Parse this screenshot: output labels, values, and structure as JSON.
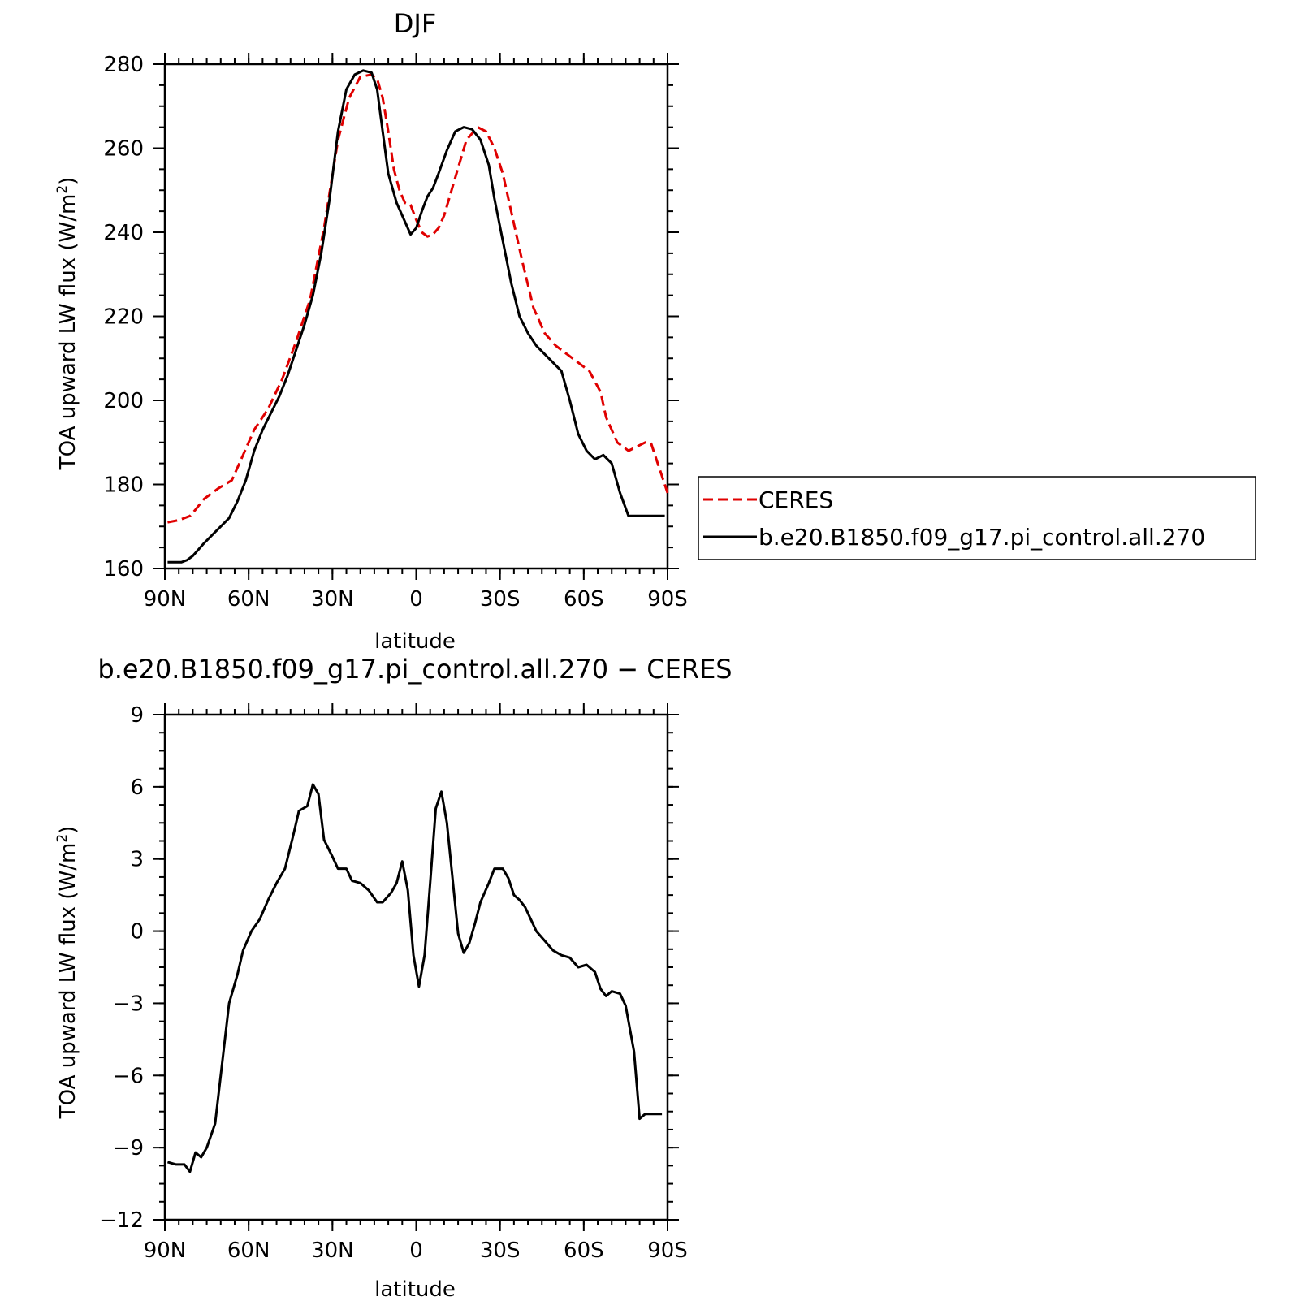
{
  "chart_data": [
    {
      "type": "line",
      "title": "DJF",
      "xlabel": "latitude",
      "ylabel_main": "TOA upward LW flux (W/m",
      "ylabel_sup": "2",
      "ylabel_close": ")",
      "xlim": [
        90,
        -90
      ],
      "ylim": [
        160,
        280
      ],
      "xticks": [
        90,
        60,
        30,
        0,
        -30,
        -60,
        -90
      ],
      "xtick_labels": [
        "90N",
        "60N",
        "30N",
        "0",
        "30S",
        "60S",
        "90S"
      ],
      "yticks": [
        160,
        180,
        200,
        220,
        240,
        260,
        280
      ],
      "ytick_labels": [
        "160",
        "180",
        "200",
        "220",
        "240",
        "260",
        "280"
      ],
      "grid": false,
      "legend": "right",
      "series": [
        {
          "name": "CERES",
          "color": "#e00000",
          "style": "dashed",
          "x": [
            89,
            85,
            81,
            79,
            76,
            71,
            66,
            62,
            58,
            53,
            48,
            43,
            38,
            33,
            28,
            24,
            20,
            16,
            14,
            12,
            10,
            8,
            6,
            4,
            2,
            0,
            -2,
            -4,
            -6,
            -8,
            -10,
            -14,
            -18,
            -22,
            -25,
            -28,
            -31,
            -34,
            -38,
            -42,
            -46,
            -50,
            -54,
            -58,
            -62,
            -66,
            -68,
            -72,
            -76,
            -79,
            -82,
            -84,
            -86,
            -88,
            -90
          ],
          "values": [
            171,
            171.5,
            172.5,
            174,
            176.5,
            179,
            181,
            187,
            193,
            198,
            205,
            214,
            224,
            241,
            262,
            272,
            277,
            277.5,
            276.5,
            272,
            264,
            255,
            250,
            247,
            246.5,
            243,
            240,
            239,
            239.5,
            241,
            244,
            253,
            262,
            265,
            264,
            260,
            254,
            245,
            233,
            222,
            216,
            213,
            211,
            209,
            207,
            202,
            196,
            190,
            188,
            189,
            190,
            190,
            186,
            182,
            178
          ]
        },
        {
          "name": "b.e20.B1850.f09_g17.pi_control.all.270",
          "color": "#000000",
          "style": "solid",
          "x": [
            89,
            84,
            82,
            80,
            78,
            76,
            73,
            70,
            67,
            64,
            61,
            58,
            55,
            52,
            49,
            46,
            43,
            40,
            37,
            34,
            31,
            28,
            25,
            22,
            19,
            16,
            14,
            12,
            10,
            7,
            4,
            2,
            0,
            -2,
            -4,
            -6,
            -8,
            -11,
            -14,
            -17,
            -20,
            -23,
            -26,
            -28,
            -31,
            -34,
            -37,
            -40,
            -43,
            -46,
            -49,
            -52,
            -55,
            -58,
            -61,
            -64,
            -67,
            -70,
            -73,
            -76,
            -79,
            -81,
            -83,
            -85,
            -87,
            -89
          ],
          "values": [
            161.5,
            161.5,
            162,
            163,
            164.5,
            166,
            168,
            170,
            172,
            176,
            181,
            188,
            193,
            197,
            201,
            206,
            212,
            218,
            225,
            235,
            248,
            264,
            274,
            277.5,
            278.5,
            278,
            274,
            264,
            254,
            247,
            242.5,
            239.5,
            241,
            245,
            248.5,
            250.5,
            254,
            259.5,
            264,
            265,
            264.5,
            262,
            256,
            248,
            238,
            228,
            220,
            216,
            213,
            211,
            209,
            207,
            200,
            192,
            188,
            186,
            187,
            185,
            178,
            172.5,
            172.5,
            172.5,
            172.5,
            172.5,
            172.5,
            172.5
          ]
        }
      ]
    },
    {
      "type": "line",
      "title": "b.e20.B1850.f09_g17.pi_control.all.270 − CERES",
      "xlabel": "latitude",
      "ylabel_main": "TOA upward LW flux (W/m",
      "ylabel_sup": "2",
      "ylabel_close": ")",
      "xlim": [
        90,
        -90
      ],
      "ylim": [
        -12,
        9
      ],
      "xticks": [
        90,
        60,
        30,
        0,
        -30,
        -60,
        -90
      ],
      "xtick_labels": [
        "90N",
        "60N",
        "30N",
        "0",
        "30S",
        "60S",
        "90S"
      ],
      "yticks": [
        -12,
        -9,
        -6,
        -3,
        0,
        3,
        6,
        9
      ],
      "ytick_labels": [
        "−12",
        "−9",
        "−6",
        "−3",
        "0",
        "3",
        "6",
        "9"
      ],
      "grid": false,
      "series": [
        {
          "color": "#000000",
          "style": "solid",
          "x": [
            89,
            86,
            83,
            81,
            79,
            77,
            75,
            72,
            70,
            67,
            64,
            62,
            59,
            56,
            53,
            50,
            47,
            44,
            42,
            39,
            37,
            35,
            33,
            30,
            28,
            25,
            23,
            20,
            17,
            14,
            12,
            9,
            7,
            5,
            3,
            1,
            -1,
            -3,
            -5,
            -7,
            -9,
            -11,
            -13,
            -15,
            -17,
            -19,
            -21,
            -23,
            -26,
            -28,
            -31,
            -33,
            -35,
            -37,
            -39,
            -41,
            -43,
            -46,
            -49,
            -52,
            -55,
            -58,
            -61,
            -64,
            -66,
            -68,
            -70,
            -73,
            -75,
            -78,
            -80,
            -82,
            -84,
            -86,
            -88
          ],
          "values": [
            -9.6,
            -9.7,
            -9.7,
            -10,
            -9.2,
            -9.4,
            -9,
            -8,
            -6,
            -3,
            -1.8,
            -0.8,
            0,
            0.5,
            1.3,
            2,
            2.6,
            4,
            5,
            5.2,
            6.1,
            5.7,
            3.8,
            3.1,
            2.6,
            2.6,
            2.1,
            2,
            1.7,
            1.2,
            1.2,
            1.6,
            2,
            2.9,
            1.7,
            -1,
            -2.3,
            -1,
            2,
            5.1,
            5.8,
            4.5,
            2.2,
            -0.1,
            -0.9,
            -0.5,
            0.3,
            1.2,
            2,
            2.6,
            2.6,
            2.2,
            1.5,
            1.3,
            1,
            0.5,
            0,
            -0.4,
            -0.8,
            -1,
            -1.1,
            -1.5,
            -1.4,
            -1.7,
            -2.4,
            -2.7,
            -2.5,
            -2.6,
            -3.1,
            -5,
            -7.8,
            -7.6,
            -7.6,
            -7.6,
            -7.6
          ]
        }
      ]
    }
  ]
}
